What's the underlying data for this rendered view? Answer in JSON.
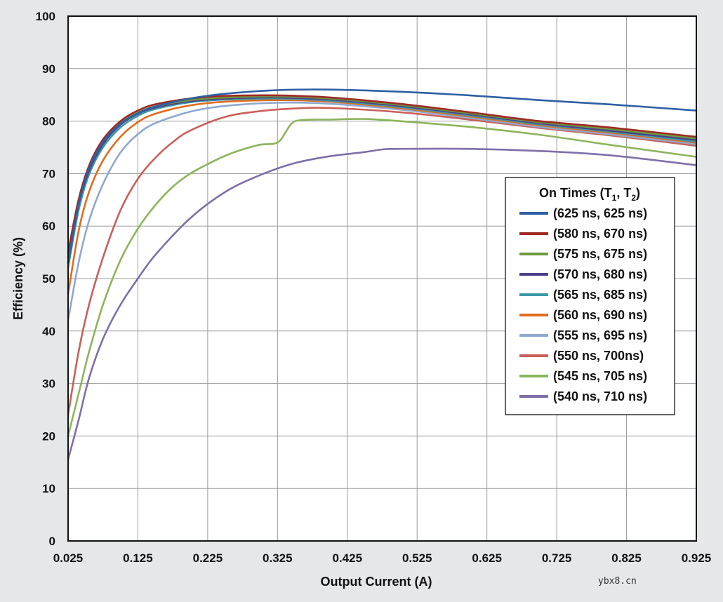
{
  "chart_data": {
    "type": "line",
    "xlabel": "Output Current (A)",
    "ylabel": "Efficiency (%)",
    "xlim": [
      0.025,
      0.925
    ],
    "ylim": [
      0,
      100
    ],
    "x_ticks": [
      "0.025",
      "0.125",
      "0.225",
      "0.325",
      "0.425",
      "0.525",
      "0.625",
      "0.725",
      "0.825",
      "0.925"
    ],
    "y_ticks": [
      "0",
      "10",
      "20",
      "30",
      "40",
      "50",
      "60",
      "70",
      "80",
      "90",
      "100"
    ],
    "grid": true,
    "legend": {
      "title_main": "On Times (T",
      "title_sub1": "1",
      "title_mid": ", T",
      "title_sub2": "2",
      "title_end": ")",
      "placement": "right"
    },
    "series": [
      {
        "name": "(625 ns, 625 ns)",
        "color": "#2e5fa3",
        "x": [
          0.025,
          0.04,
          0.055,
          0.075,
          0.1,
          0.125,
          0.15,
          0.2,
          0.25,
          0.325,
          0.4,
          0.5,
          0.6,
          0.7,
          0.8,
          0.925
        ],
        "y": [
          53,
          64,
          71,
          76,
          79.5,
          81.5,
          82.8,
          84.3,
          85.2,
          85.9,
          86,
          85.6,
          84.9,
          84,
          83.2,
          82
        ]
      },
      {
        "name": "(580 ns, 670 ns)",
        "color": "#9e2b25",
        "x": [
          0.025,
          0.04,
          0.055,
          0.075,
          0.1,
          0.125,
          0.15,
          0.2,
          0.25,
          0.325,
          0.4,
          0.5,
          0.6,
          0.7,
          0.8,
          0.925
        ],
        "y": [
          55,
          65,
          71.5,
          76.5,
          80,
          82,
          83.2,
          84.3,
          84.8,
          84.9,
          84.5,
          83.3,
          81.7,
          80,
          78.8,
          77
        ]
      },
      {
        "name": "(575 ns, 675 ns)",
        "color": "#6e9a3c",
        "x": [
          0.025,
          0.04,
          0.055,
          0.075,
          0.1,
          0.125,
          0.15,
          0.2,
          0.25,
          0.325,
          0.4,
          0.5,
          0.6,
          0.7,
          0.8,
          0.925
        ],
        "y": [
          54,
          64.5,
          71,
          76,
          79.6,
          81.6,
          82.8,
          84,
          84.5,
          84.7,
          84.3,
          83.1,
          81.5,
          79.8,
          78.5,
          76.7
        ]
      },
      {
        "name": "(570 ns, 680 ns)",
        "color": "#4e3f8a",
        "x": [
          0.025,
          0.04,
          0.055,
          0.075,
          0.1,
          0.125,
          0.15,
          0.2,
          0.25,
          0.325,
          0.4,
          0.5,
          0.6,
          0.7,
          0.8,
          0.925
        ],
        "y": [
          53,
          64,
          70.5,
          75.6,
          79.3,
          81.4,
          82.6,
          83.8,
          84.3,
          84.5,
          84.1,
          82.9,
          81.3,
          79.6,
          78.2,
          76.4
        ]
      },
      {
        "name": "(565 ns, 685 ns)",
        "color": "#3a9aa8",
        "x": [
          0.025,
          0.04,
          0.055,
          0.075,
          0.1,
          0.125,
          0.15,
          0.2,
          0.25,
          0.325,
          0.4,
          0.5,
          0.6,
          0.7,
          0.8,
          0.925
        ],
        "y": [
          52,
          63,
          69.8,
          75,
          78.8,
          81,
          82.3,
          83.6,
          84.1,
          84.3,
          83.9,
          82.7,
          81.1,
          79.4,
          78,
          76.1
        ]
      },
      {
        "name": "(560 ns, 690 ns)",
        "color": "#e06c1f",
        "x": [
          0.025,
          0.04,
          0.055,
          0.075,
          0.1,
          0.125,
          0.15,
          0.2,
          0.25,
          0.325,
          0.4,
          0.5,
          0.6,
          0.7,
          0.8,
          0.925
        ],
        "y": [
          47,
          59,
          66.5,
          72.5,
          77,
          79.8,
          81.4,
          83,
          83.7,
          84,
          83.7,
          82.5,
          80.9,
          79.2,
          77.8,
          75.9
        ]
      },
      {
        "name": "(555 ns, 695 ns)",
        "color": "#8fa8d0",
        "x": [
          0.025,
          0.04,
          0.055,
          0.075,
          0.1,
          0.125,
          0.15,
          0.2,
          0.25,
          0.325,
          0.4,
          0.5,
          0.6,
          0.7,
          0.8,
          0.925
        ],
        "y": [
          42,
          53,
          61,
          68,
          74,
          77.5,
          79.6,
          81.8,
          82.9,
          83.5,
          83.3,
          82.2,
          80.6,
          78.9,
          77.5,
          75.6
        ]
      },
      {
        "name": "(550 ns, 700ns)",
        "color": "#c9605a",
        "x": [
          0.025,
          0.04,
          0.055,
          0.075,
          0.1,
          0.125,
          0.15,
          0.175,
          0.2,
          0.25,
          0.3,
          0.35,
          0.4,
          0.5,
          0.6,
          0.7,
          0.8,
          0.925
        ],
        "y": [
          24,
          36,
          45,
          54,
          63,
          69,
          73,
          76,
          78.2,
          80.8,
          81.9,
          82.4,
          82.5,
          81.7,
          80.3,
          78.7,
          77.3,
          75.3
        ]
      },
      {
        "name": "(545 ns, 705 ns)",
        "color": "#8db55c",
        "x": [
          0.025,
          0.04,
          0.055,
          0.075,
          0.1,
          0.125,
          0.15,
          0.175,
          0.2,
          0.225,
          0.25,
          0.275,
          0.3,
          0.32,
          0.33,
          0.345,
          0.36,
          0.4,
          0.45,
          0.5,
          0.6,
          0.7,
          0.8,
          0.925
        ],
        "y": [
          20,
          28,
          36,
          45,
          53.5,
          59.5,
          64,
          67.5,
          70,
          71.8,
          73.4,
          74.6,
          75.5,
          75.7,
          76.5,
          79.5,
          80.2,
          80.3,
          80.4,
          80,
          78.9,
          77.4,
          75.5,
          73.2
        ]
      },
      {
        "name": "(540 ns, 710 ns)",
        "color": "#7e6fa8",
        "x": [
          0.025,
          0.04,
          0.055,
          0.075,
          0.1,
          0.125,
          0.15,
          0.2,
          0.25,
          0.3,
          0.35,
          0.4,
          0.45,
          0.475,
          0.5,
          0.6,
          0.7,
          0.8,
          0.925
        ],
        "y": [
          15.5,
          23,
          31,
          38.5,
          45,
          50,
          54.5,
          61.5,
          66.5,
          69.7,
          72,
          73.3,
          74.1,
          74.6,
          74.7,
          74.7,
          74.3,
          73.5,
          71.6
        ]
      }
    ]
  },
  "watermark": "ybx8.cn"
}
